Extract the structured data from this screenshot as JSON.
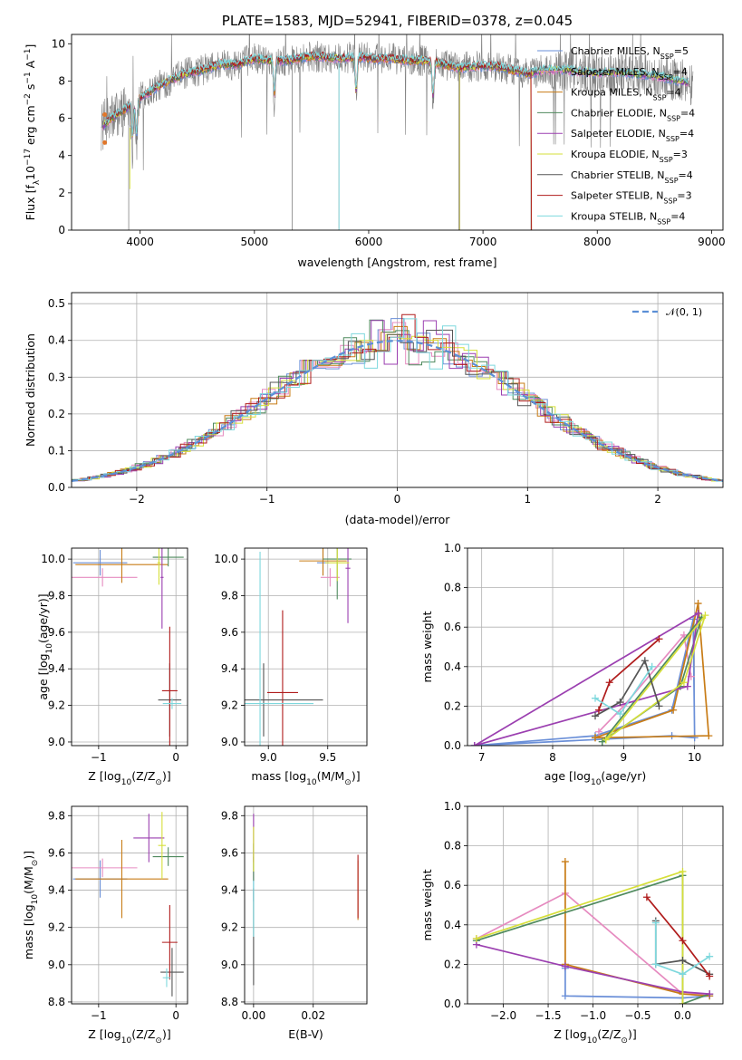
{
  "chart_data": [
    {
      "id": "spectrum",
      "type": "line",
      "title": "PLATE=1583, MJD=52941, FIBERID=0378, z=0.045",
      "xlabel": "wavelength [Angstrom, rest frame]",
      "ylabel": "Flux [f$_\\lambda$10$^{-17}$ erg cm$^{-2}$ s$^{-1}$ A$^{-1}$]",
      "ylabel_main": "Flux [f",
      "ylabel_parts": [
        "Flux [f",
        "λ",
        "10",
        "−17",
        " erg cm",
        "−2",
        " s",
        "−1",
        " A",
        "−1",
        "]"
      ],
      "xlim": [
        3400,
        9100
      ],
      "ylim": [
        0,
        10.5
      ],
      "xticks": [
        4000,
        5000,
        6000,
        7000,
        8000,
        9000
      ],
      "xtick_labels": [
        "4000",
        "5000",
        "6000",
        "7000",
        "8000",
        "9000"
      ],
      "yticks": [
        0,
        2,
        4,
        6,
        8,
        10
      ],
      "ytick_labels": [
        "0",
        "2",
        "4",
        "6",
        "8",
        "10"
      ],
      "grid": false,
      "legend_position": "upper-right",
      "series": [
        {
          "name": "Chabrier MILES, N$_{SSP}$=5",
          "label_main": "Chabrier MILES, N",
          "label_sub": "SSP",
          "label_tail": "=5",
          "color": "#6a8fd8"
        },
        {
          "name": "Salpeter MILES, N$_{SSP}$=4",
          "label_main": "Salpeter MILES, N",
          "label_sub": "SSP",
          "label_tail": "=4",
          "color": "#e68bc0"
        },
        {
          "name": "Kroupa MILES, N$_{SSP}$=4",
          "label_main": "Kroupa MILES, N",
          "label_sub": "SSP",
          "label_tail": "=4",
          "color": "#c87c16"
        },
        {
          "name": "Chabrier ELODIE, N$_{SSP}$=4",
          "label_main": "Chabrier ELODIE, N",
          "label_sub": "SSP",
          "label_tail": "=4",
          "color": "#4f8a5e"
        },
        {
          "name": "Salpeter ELODIE, N$_{SSP}$=4",
          "label_main": "Salpeter ELODIE, N",
          "label_sub": "SSP",
          "label_tail": "=4",
          "color": "#9b3fb0"
        },
        {
          "name": "Kroupa ELODIE, N$_{SSP}$=3",
          "label_main": "Kroupa ELODIE, N",
          "label_sub": "SSP",
          "label_tail": "=3",
          "color": "#d6df3a"
        },
        {
          "name": "Chabrier STELIB, N$_{SSP}$=4",
          "label_main": "Chabrier STELIB, N",
          "label_sub": "SSP",
          "label_tail": "=4",
          "color": "#555555"
        },
        {
          "name": "Salpeter STELIB, N$_{SSP}$=3",
          "label_main": "Salpeter STELIB, N",
          "label_sub": "SSP",
          "label_tail": "=3",
          "color": "#b01c1c"
        },
        {
          "name": "Kroupa STELIB, N$_{SSP}$=4",
          "label_main": "Kroupa STELIB, N",
          "label_sub": "SSP",
          "label_tail": "=4",
          "color": "#7ed8dd"
        }
      ],
      "data_color": "#808080",
      "x": [
        3680,
        3750,
        3850,
        3950,
        4050,
        4150,
        4250,
        4400,
        4550,
        4700,
        4850,
        5000,
        5150,
        5300,
        5450,
        5600,
        5750,
        5900,
        6050,
        6200,
        6350,
        6500,
        6650,
        6800,
        6950,
        7100,
        7250,
        7400,
        7550,
        7700,
        7850,
        8000,
        8150,
        8300,
        8450,
        8600,
        8800
      ],
      "model_flux": [
        5.6,
        6.0,
        6.4,
        6.9,
        7.3,
        7.7,
        8.0,
        8.4,
        8.6,
        8.9,
        8.9,
        9.2,
        9.1,
        9.1,
        9.3,
        9.3,
        9.2,
        9.3,
        9.2,
        9.2,
        9.1,
        9.1,
        8.9,
        8.7,
        8.8,
        8.8,
        8.6,
        8.4,
        8.6,
        8.6,
        8.5,
        8.4,
        8.5,
        8.4,
        8.3,
        8.2,
        7.9
      ],
      "absorption_lines": [
        3934,
        3969,
        5175,
        5890,
        6563
      ],
      "telluric_gaps": [
        3900,
        5330,
        5740,
        6790,
        7420
      ]
    },
    {
      "id": "residuals",
      "type": "histogram",
      "xlabel": "(data-model)/error",
      "ylabel": "Normed distribution",
      "xlim": [
        -2.5,
        2.5
      ],
      "ylim": [
        0,
        0.53
      ],
      "xticks": [
        -2,
        -1,
        0,
        1,
        2
      ],
      "xtick_labels": [
        "−2",
        "−1",
        "0",
        "1",
        "2"
      ],
      "yticks": [
        0,
        0.1,
        0.2,
        0.3,
        0.4,
        0.5
      ],
      "ytick_labels": [
        "0.0",
        "0.1",
        "0.2",
        "0.3",
        "0.4",
        "0.5"
      ],
      "grid": true,
      "legend": "$\\mathcal{N}(0,1)$",
      "legend_text": "𝒩(0, 1)",
      "legend_position": "upper-right",
      "curve_color": "#5b8fd6",
      "bin_width": 0.1
    },
    {
      "id": "age_vs_Z",
      "type": "errorbar",
      "xlabel": "Z [log$_{10}$(Z/Z$_\\odot$)]",
      "xlabel_text": "Z [log",
      "ylabel": "age  [log$_{10}$(age/yr)]",
      "ylabel_text": "age  [log",
      "xlim": [
        -1.35,
        0.15
      ],
      "ylim": [
        8.98,
        10.06
      ],
      "xticks": [
        -1,
        0
      ],
      "xtick_labels": [
        "−1",
        "0"
      ],
      "yticks": [
        9.0,
        9.2,
        9.4,
        9.6,
        9.8,
        10.0
      ],
      "ytick_labels": [
        "9.0",
        "9.2",
        "9.4",
        "9.6",
        "9.8",
        "10.0"
      ],
      "grid": true,
      "points": [
        {
          "color": "#6a8fd8",
          "x": -0.98,
          "y": 9.98,
          "xerr": 0.35,
          "yerr": 0.07
        },
        {
          "color": "#e68bc0",
          "x": -0.95,
          "y": 9.9,
          "xerr": 0.45,
          "yerr": 0.05
        },
        {
          "color": "#c87c16",
          "x": -0.7,
          "y": 9.97,
          "xerr": 0.6,
          "yerr": 0.1
        },
        {
          "color": "#4f8a5e",
          "x": -0.1,
          "y": 10.01,
          "xerr": 0.2,
          "yerr": 0.05
        },
        {
          "color": "#9b3fb0",
          "x": -0.18,
          "y": 9.9,
          "xerr": 0.02,
          "yerr": 0.28
        },
        {
          "color": "#d6df3a",
          "x": -0.22,
          "y": 9.98,
          "xerr": 0.02,
          "yerr": 0.12
        },
        {
          "color": "#555555",
          "x": -0.08,
          "y": 9.23,
          "xerr": 0.15,
          "yerr": 0.2
        },
        {
          "color": "#b01c1c",
          "x": -0.08,
          "y": 9.28,
          "xerr": 0.1,
          "yerr": 0.35
        },
        {
          "color": "#7ed8dd",
          "x": -0.05,
          "y": 9.21,
          "xerr": 0.12,
          "yerr": 0.03
        }
      ]
    },
    {
      "id": "age_vs_mass",
      "type": "errorbar",
      "xlabel": "mass [log$_{10}$(M/M$_\\odot$)]",
      "xlabel_text": "mass [log",
      "xlim": [
        8.8,
        9.83
      ],
      "ylim": [
        8.98,
        10.06
      ],
      "xticks": [
        9.0,
        9.5
      ],
      "xtick_labels": [
        "9.0",
        "9.5"
      ],
      "yticks": [
        9.0,
        9.2,
        9.4,
        9.6,
        9.8,
        10.0
      ],
      "ytick_labels": [
        "9.0",
        "9.2",
        "9.4",
        "9.6",
        "9.8",
        "10.0"
      ],
      "grid": true,
      "points": [
        {
          "color": "#6a8fd8",
          "x": 9.46,
          "y": 9.98,
          "xerr": 0.05,
          "yerr": 0.07
        },
        {
          "color": "#e68bc0",
          "x": 9.52,
          "y": 9.9,
          "xerr": 0.08,
          "yerr": 0.05
        },
        {
          "color": "#c87c16",
          "x": 9.46,
          "y": 9.99,
          "xerr": 0.2,
          "yerr": 0.08
        },
        {
          "color": "#4f8a5e",
          "x": 9.58,
          "y": 10.0,
          "xerr": 0.12,
          "yerr": 0.22
        },
        {
          "color": "#9b3fb0",
          "x": 9.67,
          "y": 9.95,
          "xerr": 0.02,
          "yerr": 0.3
        },
        {
          "color": "#d6df3a",
          "x": 9.58,
          "y": 9.98,
          "xerr": 0.1,
          "yerr": 0.1
        },
        {
          "color": "#555555",
          "x": 8.96,
          "y": 9.23,
          "xerr": 0.5,
          "yerr": 0.2
        },
        {
          "color": "#b01c1c",
          "x": 9.12,
          "y": 9.27,
          "xerr": 0.13,
          "yerr": 0.45
        },
        {
          "color": "#7ed8dd",
          "x": 8.93,
          "y": 9.21,
          "xerr": 0.45,
          "yerr": 0.83
        }
      ]
    },
    {
      "id": "weight_vs_age",
      "type": "line",
      "xlabel": "age  [log$_{10}$(age/yr)]",
      "xlabel_text": "age  [log",
      "ylabel": "mass weight",
      "xlim": [
        6.8,
        10.4
      ],
      "ylim": [
        0,
        1.0
      ],
      "xticks": [
        7,
        8,
        9,
        10
      ],
      "xtick_labels": [
        "7",
        "8",
        "9",
        "10"
      ],
      "yticks": [
        0,
        0.2,
        0.4,
        0.6,
        0.8,
        1.0
      ],
      "ytick_labels": [
        "0.0",
        "0.2",
        "0.4",
        "0.6",
        "0.8",
        "1.0"
      ],
      "grid": true,
      "series": [
        {
          "color": "#6a8fd8",
          "x": [
            6.9,
            8.6,
            9.68,
            9.98,
            10.0,
            9.68,
            6.9
          ],
          "y": [
            0.0,
            0.05,
            0.18,
            0.64,
            0.04,
            0.05,
            0.0
          ]
        },
        {
          "color": "#e68bc0",
          "x": [
            8.65,
            9.0,
            9.85,
            9.95
          ],
          "y": [
            0.07,
            0.2,
            0.56,
            0.35
          ]
        },
        {
          "color": "#c87c16",
          "x": [
            8.6,
            9.7,
            10.05,
            10.2,
            8.6
          ],
          "y": [
            0.04,
            0.18,
            0.72,
            0.05,
            0.04
          ]
        },
        {
          "color": "#4f8a5e",
          "x": [
            8.7,
            9.8,
            10.1,
            8.7
          ],
          "y": [
            0.02,
            0.3,
            0.65,
            0.02
          ]
        },
        {
          "color": "#9b3fb0",
          "x": [
            6.9,
            9.9,
            10.05,
            6.9
          ],
          "y": [
            0.0,
            0.3,
            0.67,
            0.0
          ]
        },
        {
          "color": "#d6df3a",
          "x": [
            8.75,
            9.85,
            10.15,
            8.75
          ],
          "y": [
            0.03,
            0.32,
            0.66,
            0.03
          ]
        },
        {
          "color": "#555555",
          "x": [
            8.6,
            8.95,
            9.3,
            9.5
          ],
          "y": [
            0.15,
            0.22,
            0.43,
            0.2
          ]
        },
        {
          "color": "#b01c1c",
          "x": [
            8.65,
            8.8,
            9.5
          ],
          "y": [
            0.18,
            0.32,
            0.54
          ]
        },
        {
          "color": "#7ed8dd",
          "x": [
            8.6,
            8.95,
            9.4
          ],
          "y": [
            0.24,
            0.16,
            0.4
          ]
        }
      ]
    },
    {
      "id": "mass_vs_Z",
      "type": "errorbar",
      "xlabel": "Z [log$_{10}$(Z/Z$_\\odot$)]",
      "xlabel_text": "Z [log",
      "ylabel": "mass [log$_{10}$(M/M$_\\odot$)]",
      "ylabel_text": "mass [log",
      "xlim": [
        -1.35,
        0.15
      ],
      "ylim": [
        8.79,
        9.85
      ],
      "xticks": [
        -1,
        0
      ],
      "xtick_labels": [
        "−1",
        "0"
      ],
      "yticks": [
        8.8,
        9.0,
        9.2,
        9.4,
        9.6,
        9.8
      ],
      "ytick_labels": [
        "8.8",
        "9.0",
        "9.2",
        "9.4",
        "9.6",
        "9.8"
      ],
      "grid": true,
      "points": [
        {
          "color": "#6a8fd8",
          "x": -0.98,
          "y": 9.46,
          "xerr": 0.35,
          "yerr": 0.1
        },
        {
          "color": "#e68bc0",
          "x": -0.95,
          "y": 9.52,
          "xerr": 0.45,
          "yerr": 0.05
        },
        {
          "color": "#c87c16",
          "x": -0.7,
          "y": 9.46,
          "xerr": 0.6,
          "yerr": 0.21
        },
        {
          "color": "#4f8a5e",
          "x": -0.1,
          "y": 9.58,
          "xerr": 0.2,
          "yerr": 0.05
        },
        {
          "color": "#9b3fb0",
          "x": -0.35,
          "y": 9.68,
          "xerr": 0.2,
          "yerr": 0.13
        },
        {
          "color": "#d6df3a",
          "x": -0.18,
          "y": 9.64,
          "xerr": 0.05,
          "yerr": 0.18
        },
        {
          "color": "#555555",
          "x": -0.05,
          "y": 8.96,
          "xerr": 0.15,
          "yerr": 0.13
        },
        {
          "color": "#b01c1c",
          "x": -0.08,
          "y": 9.12,
          "xerr": 0.1,
          "yerr": 0.2
        },
        {
          "color": "#7ed8dd",
          "x": -0.12,
          "y": 8.93,
          "xerr": 0.05,
          "yerr": 0.05
        }
      ]
    },
    {
      "id": "mass_vs_ebv",
      "type": "errorbar",
      "xlabel": "E(B-V)",
      "xlim": [
        -0.003,
        0.038
      ],
      "ylim": [
        8.79,
        9.85
      ],
      "xticks": [
        0.0,
        0.02
      ],
      "xtick_labels": [
        "0.00",
        "0.02"
      ],
      "yticks": [
        8.8,
        9.0,
        9.2,
        9.4,
        9.6,
        9.8
      ],
      "ytick_labels": [
        "8.8",
        "9.0",
        "9.2",
        "9.4",
        "9.6",
        "9.8"
      ],
      "grid": true,
      "points": [
        {
          "color": "#6a8fd8",
          "x": 0.0,
          "y": 9.46,
          "xerr": 0.0,
          "yerr": 0.12
        },
        {
          "color": "#e68bc0",
          "x": 0.0,
          "y": 9.52,
          "xerr": 0.0,
          "yerr": 0.06
        },
        {
          "color": "#c87c16",
          "x": 0.035,
          "y": 9.4,
          "xerr": 0.0,
          "yerr": 0.16
        },
        {
          "color": "#4f8a5e",
          "x": 0.0,
          "y": 9.55,
          "xerr": 0.0,
          "yerr": 0.1
        },
        {
          "color": "#9b3fb0",
          "x": 0.0,
          "y": 9.68,
          "xerr": 0.0,
          "yerr": 0.13
        },
        {
          "color": "#d6df3a",
          "x": 0.0,
          "y": 9.62,
          "xerr": 0.0,
          "yerr": 0.12
        },
        {
          "color": "#555555",
          "x": 0.0,
          "y": 9.15,
          "xerr": 0.0,
          "yerr": 0.26
        },
        {
          "color": "#b01c1c",
          "x": 0.035,
          "y": 9.42,
          "xerr": 0.0,
          "yerr": 0.17
        },
        {
          "color": "#7ed8dd",
          "x": 0.0,
          "y": 9.3,
          "xerr": 0.0,
          "yerr": 0.15
        }
      ]
    },
    {
      "id": "weight_vs_Z",
      "type": "line",
      "xlabel": "Z [log$_{10}$(Z/Z$_\\odot$)]",
      "xlabel_text": "Z [log",
      "ylabel": "mass weight",
      "xlim": [
        -2.4,
        0.45
      ],
      "ylim": [
        0,
        1.0
      ],
      "xticks": [
        -2.0,
        -1.5,
        -1.0,
        -0.5,
        0.0
      ],
      "xtick_labels": [
        "−2.0",
        "−1.5",
        "−1.0",
        "−0.5",
        "0.0"
      ],
      "yticks": [
        0,
        0.2,
        0.4,
        0.6,
        0.8,
        1.0
      ],
      "ytick_labels": [
        "0.0",
        "0.2",
        "0.4",
        "0.6",
        "0.8",
        "1.0"
      ],
      "grid": true,
      "series": [
        {
          "color": "#6a8fd8",
          "x": [
            -1.31,
            -1.31,
            0.0,
            0.3
          ],
          "y": [
            0.18,
            0.04,
            0.03,
            0.04
          ]
        },
        {
          "color": "#e68bc0",
          "x": [
            -2.3,
            -1.31,
            0.0,
            0.3
          ],
          "y": [
            0.33,
            0.56,
            0.05,
            0.05
          ]
        },
        {
          "color": "#c87c16",
          "x": [
            -1.31,
            -1.31,
            0.0,
            0.3
          ],
          "y": [
            0.72,
            0.2,
            0.05,
            0.04
          ]
        },
        {
          "color": "#4f8a5e",
          "x": [
            -2.3,
            0.0,
            0.0,
            0.3
          ],
          "y": [
            0.32,
            0.65,
            0.0,
            0.05
          ]
        },
        {
          "color": "#9b3fb0",
          "x": [
            -2.3,
            -1.31,
            0.0,
            0.3
          ],
          "y": [
            0.3,
            0.19,
            0.06,
            0.05
          ]
        },
        {
          "color": "#d6df3a",
          "x": [
            -2.3,
            0.0,
            0.0
          ],
          "y": [
            0.33,
            0.67,
            0.0
          ]
        },
        {
          "color": "#555555",
          "x": [
            -0.3,
            -0.3,
            0.0,
            0.3
          ],
          "y": [
            0.42,
            0.2,
            0.22,
            0.15
          ]
        },
        {
          "color": "#b01c1c",
          "x": [
            -0.4,
            0.0,
            0.3
          ],
          "y": [
            0.54,
            0.32,
            0.14
          ]
        },
        {
          "color": "#7ed8dd",
          "x": [
            -0.3,
            -0.3,
            0.0,
            0.3
          ],
          "y": [
            0.41,
            0.2,
            0.15,
            0.24
          ]
        }
      ]
    }
  ]
}
